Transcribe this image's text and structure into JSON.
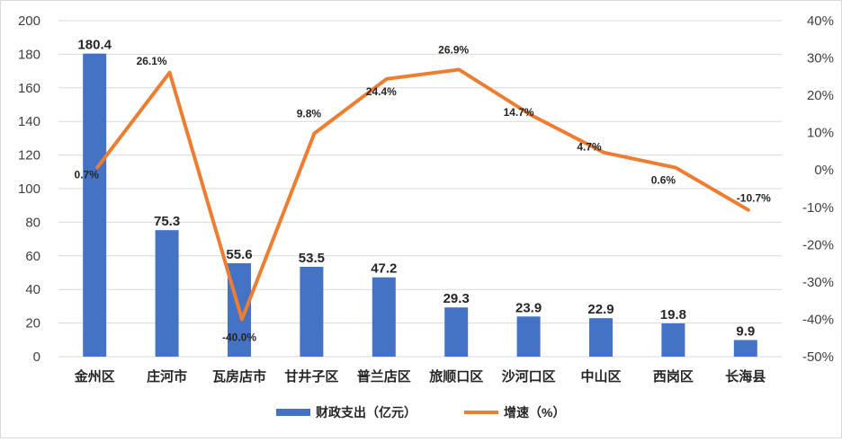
{
  "chart_data": {
    "type": "bar+line",
    "categories": [
      "金州区",
      "庄河市",
      "瓦房店市",
      "甘井子区",
      "普兰店区",
      "旅顺口区",
      "沙河口区",
      "中山区",
      "西岗区",
      "长海县"
    ],
    "series": [
      {
        "name": "财政支出（亿元）",
        "type": "bar",
        "axis": "left",
        "color": "#4472C4",
        "values": [
          180.4,
          75.3,
          55.6,
          53.5,
          47.2,
          29.3,
          23.9,
          22.9,
          19.8,
          9.9
        ],
        "labels": [
          "180.4",
          "75.3",
          "55.6",
          "53.5",
          "47.2",
          "29.3",
          "23.9",
          "22.9",
          "19.8",
          "9.9"
        ]
      },
      {
        "name": "增速（%）",
        "type": "line",
        "axis": "right",
        "color": "#ED7D31",
        "values": [
          0.7,
          26.1,
          -40.0,
          9.8,
          24.4,
          26.9,
          14.7,
          4.7,
          0.6,
          -10.7
        ],
        "labels": [
          "0.7%",
          "26.1%",
          "-40.0%",
          "9.8%",
          "24.4%",
          "26.9%",
          "14.7%",
          "4.7%",
          "0.6%",
          "-10.7%"
        ]
      }
    ],
    "y_left": {
      "min": 0,
      "max": 200,
      "step": 20,
      "ticks": [
        "0",
        "20",
        "40",
        "60",
        "80",
        "100",
        "120",
        "140",
        "160",
        "180",
        "200"
      ]
    },
    "y_right": {
      "min": -50,
      "max": 40,
      "step": 10,
      "ticks": [
        "-50%",
        "-40%",
        "-30%",
        "-20%",
        "-10%",
        "0%",
        "10%",
        "20%",
        "30%",
        "40%"
      ]
    },
    "grid": true,
    "legend_position": "bottom"
  }
}
